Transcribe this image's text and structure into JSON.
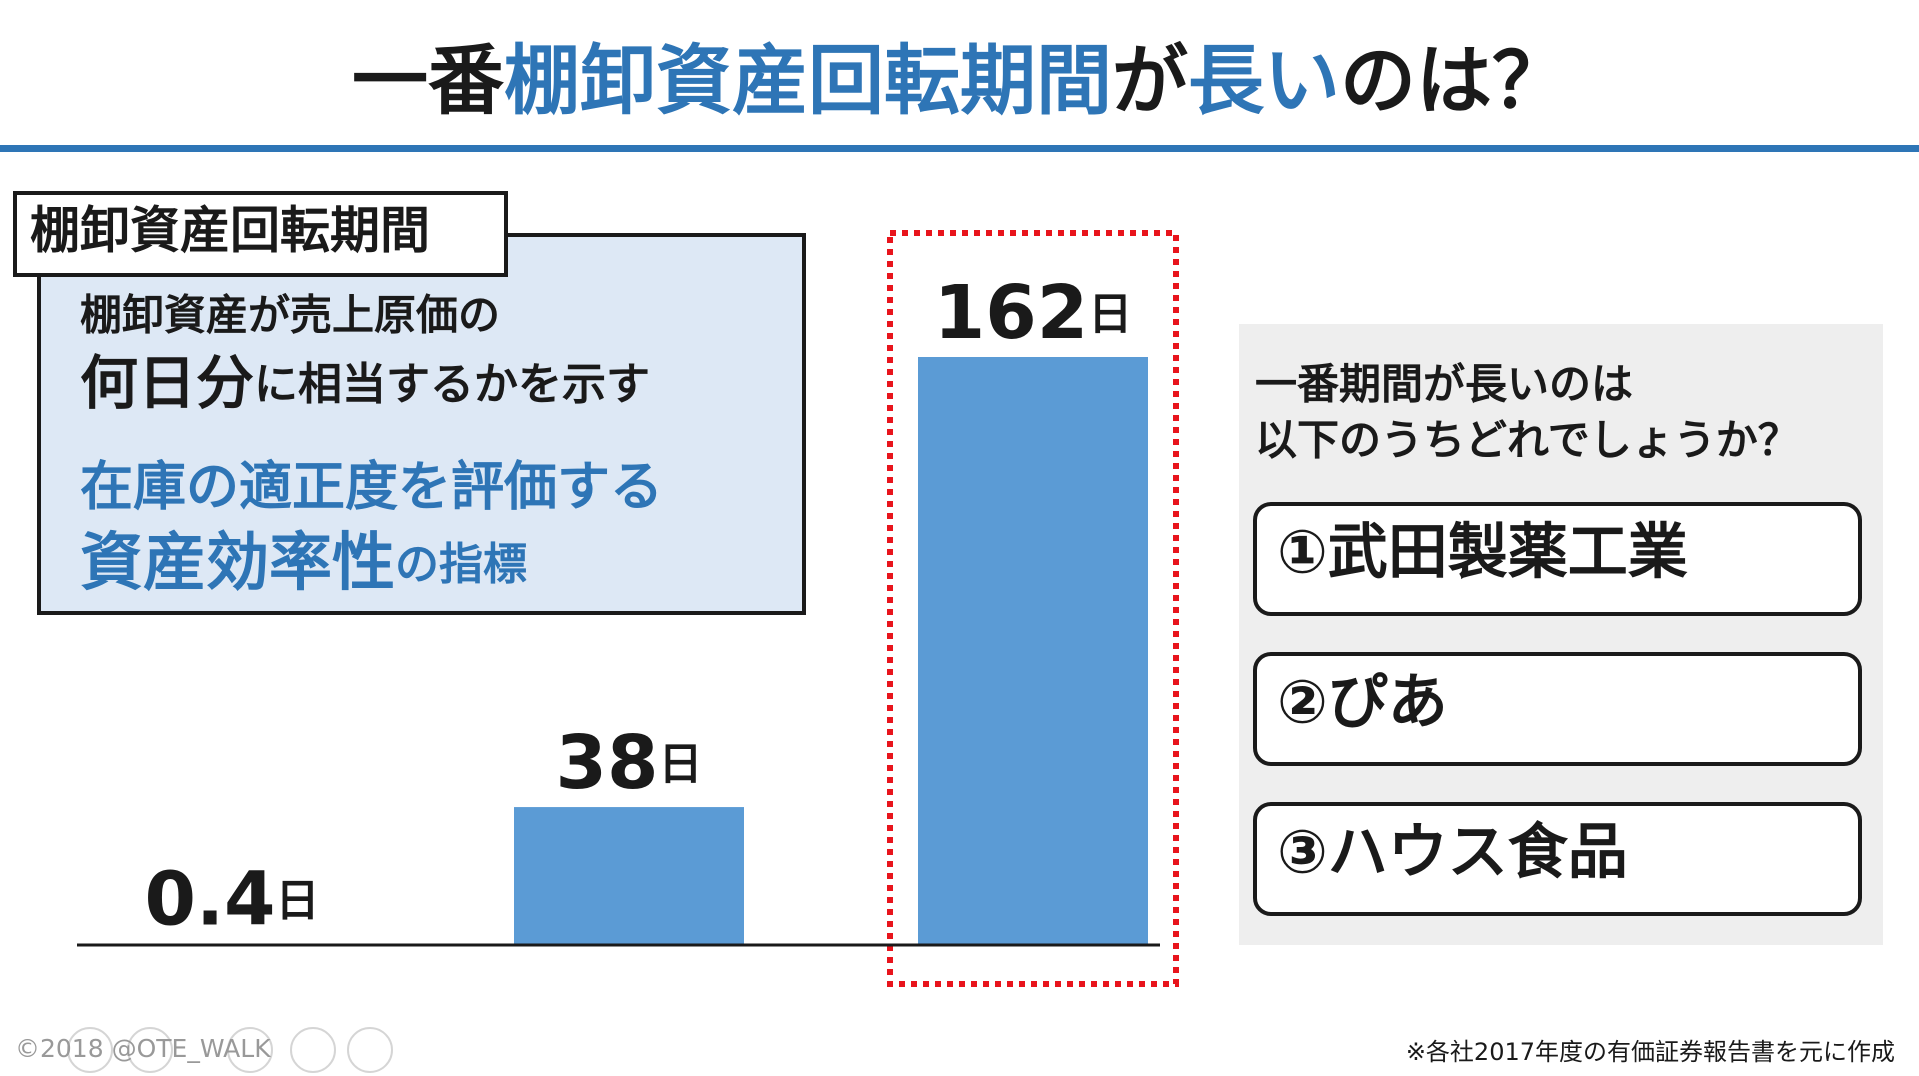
{
  "title": [
    {
      "text": "一番",
      "emphasis": false
    },
    {
      "text": "棚卸資産回転期間",
      "emphasis": true
    },
    {
      "text": "が",
      "emphasis": false
    },
    {
      "text": "長い",
      "emphasis": true
    },
    {
      "text": "のは？",
      "emphasis": false
    }
  ],
  "definition": {
    "label": "棚卸資産回転期間",
    "line1": "棚卸資産が売上原価の",
    "line2": [
      "何日分",
      "に相当するかを示す"
    ],
    "line3": "在庫の適正度を評価する",
    "line4": [
      "資産効率性",
      "の指標"
    ]
  },
  "chart_data": {
    "type": "bar",
    "categories": [
      null,
      null,
      null
    ],
    "values": [
      0.4,
      38,
      162
    ],
    "unit": "日",
    "color": "#5b9bd5",
    "highlight": 2
  },
  "quiz": {
    "question": [
      "一番期間が長いのは",
      "以下のうちどれでしょうか？"
    ],
    "options": [
      "①武田製薬工業",
      "②ぴあ",
      "③ハウス食品"
    ]
  },
  "footer": {
    "copyright": "©2018 @OTE_WALK",
    "source": "※各社2017年度の有価証券報告書を元に作成"
  }
}
